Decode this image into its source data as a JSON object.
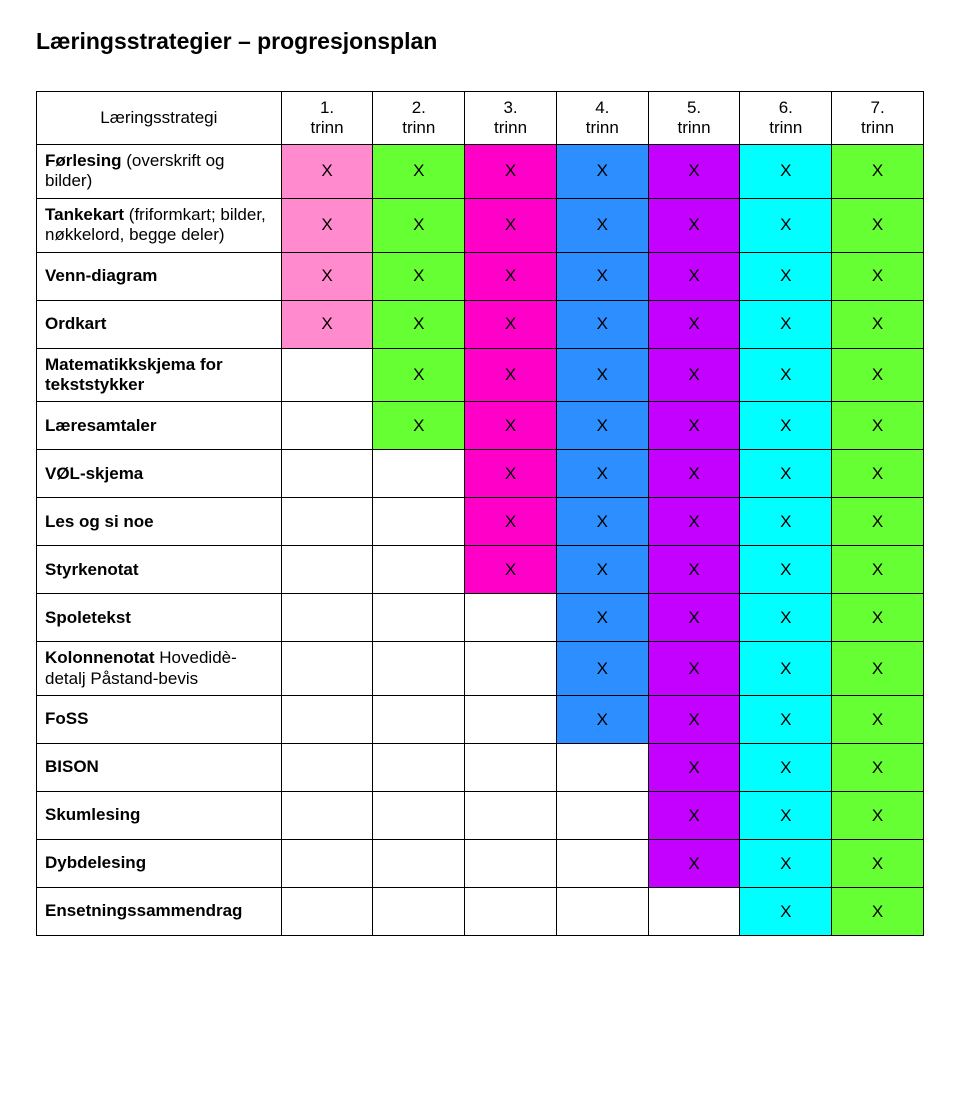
{
  "title": "Læringsstrategier – progresjonsplan",
  "header": {
    "strategy_label": "Læringsstrategi",
    "columns": [
      "1.\ntrinn",
      "2.\ntrinn",
      "3.\ntrinn",
      "4.\ntrinn",
      "5.\ntrinn",
      "6.\ntrinn",
      "7.\ntrinn"
    ]
  },
  "colors": {
    "pink": "#ff8bce",
    "green": "#66ff33",
    "magenta": "#ff00c8",
    "blue": "#2d8fff",
    "purple": "#c400ff",
    "cyan": "#00ffff",
    "white": "#ffffff"
  },
  "rows": [
    {
      "label": "Førlesing",
      "sublabel": "(overskrift og bilder)",
      "bold": true,
      "cells": [
        {
          "v": "X",
          "c": "pink"
        },
        {
          "v": "X",
          "c": "green"
        },
        {
          "v": "X",
          "c": "magenta"
        },
        {
          "v": "X",
          "c": "blue"
        },
        {
          "v": "X",
          "c": "purple"
        },
        {
          "v": "X",
          "c": "cyan"
        },
        {
          "v": "X",
          "c": "green"
        }
      ]
    },
    {
      "label": "Tankekart",
      "sublabel": "(friformkart; bilder, nøkkelord, begge deler)",
      "bold": true,
      "cells": [
        {
          "v": "X",
          "c": "pink"
        },
        {
          "v": "X",
          "c": "green"
        },
        {
          "v": "X",
          "c": "magenta"
        },
        {
          "v": "X",
          "c": "blue"
        },
        {
          "v": "X",
          "c": "purple"
        },
        {
          "v": "X",
          "c": "cyan"
        },
        {
          "v": "X",
          "c": "green"
        }
      ]
    },
    {
      "label": "Venn-diagram",
      "bold": true,
      "cells": [
        {
          "v": "X",
          "c": "pink"
        },
        {
          "v": "X",
          "c": "green"
        },
        {
          "v": "X",
          "c": "magenta"
        },
        {
          "v": "X",
          "c": "blue"
        },
        {
          "v": "X",
          "c": "purple"
        },
        {
          "v": "X",
          "c": "cyan"
        },
        {
          "v": "X",
          "c": "green"
        }
      ]
    },
    {
      "label": "Ordkart",
      "bold": true,
      "cells": [
        {
          "v": "X",
          "c": "pink"
        },
        {
          "v": "X",
          "c": "green"
        },
        {
          "v": "X",
          "c": "magenta"
        },
        {
          "v": "X",
          "c": "blue"
        },
        {
          "v": "X",
          "c": "purple"
        },
        {
          "v": "X",
          "c": "cyan"
        },
        {
          "v": "X",
          "c": "green"
        }
      ]
    },
    {
      "label": "Matematikkskjema for tekststykker",
      "bold": true,
      "cells": [
        {
          "v": "",
          "c": "white"
        },
        {
          "v": "X",
          "c": "green"
        },
        {
          "v": "X",
          "c": "magenta"
        },
        {
          "v": "X",
          "c": "blue"
        },
        {
          "v": "X",
          "c": "purple"
        },
        {
          "v": "X",
          "c": "cyan"
        },
        {
          "v": "X",
          "c": "green"
        }
      ]
    },
    {
      "label": "Læresamtaler",
      "bold": true,
      "cells": [
        {
          "v": "",
          "c": "white"
        },
        {
          "v": "X",
          "c": "green"
        },
        {
          "v": "X",
          "c": "magenta"
        },
        {
          "v": "X",
          "c": "blue"
        },
        {
          "v": "X",
          "c": "purple"
        },
        {
          "v": "X",
          "c": "cyan"
        },
        {
          "v": "X",
          "c": "green"
        }
      ]
    },
    {
      "label": "VØL-skjema",
      "bold": true,
      "cells": [
        {
          "v": "",
          "c": "white"
        },
        {
          "v": "",
          "c": "white"
        },
        {
          "v": "X",
          "c": "magenta"
        },
        {
          "v": "X",
          "c": "blue"
        },
        {
          "v": "X",
          "c": "purple"
        },
        {
          "v": "X",
          "c": "cyan"
        },
        {
          "v": "X",
          "c": "green"
        }
      ]
    },
    {
      "label": "Les og si noe",
      "bold": true,
      "cells": [
        {
          "v": "",
          "c": "white"
        },
        {
          "v": "",
          "c": "white"
        },
        {
          "v": "X",
          "c": "magenta"
        },
        {
          "v": "X",
          "c": "blue"
        },
        {
          "v": "X",
          "c": "purple"
        },
        {
          "v": "X",
          "c": "cyan"
        },
        {
          "v": "X",
          "c": "green"
        }
      ]
    },
    {
      "label": "Styrkenotat",
      "bold": true,
      "cells": [
        {
          "v": "",
          "c": "white"
        },
        {
          "v": "",
          "c": "white"
        },
        {
          "v": "X",
          "c": "magenta"
        },
        {
          "v": "X",
          "c": "blue"
        },
        {
          "v": "X",
          "c": "purple"
        },
        {
          "v": "X",
          "c": "cyan"
        },
        {
          "v": "X",
          "c": "green"
        }
      ]
    },
    {
      "label": "Spoletekst",
      "bold": true,
      "cells": [
        {
          "v": "",
          "c": "white"
        },
        {
          "v": "",
          "c": "white"
        },
        {
          "v": "",
          "c": "white"
        },
        {
          "v": "X",
          "c": "blue"
        },
        {
          "v": "X",
          "c": "purple"
        },
        {
          "v": "X",
          "c": "cyan"
        },
        {
          "v": "X",
          "c": "green"
        }
      ]
    },
    {
      "label": "Kolonnenotat",
      "sublabel": "Hovedidè-detalj Påstand-bevis",
      "bold": true,
      "cells": [
        {
          "v": "",
          "c": "white"
        },
        {
          "v": "",
          "c": "white"
        },
        {
          "v": "",
          "c": "white"
        },
        {
          "v": "X",
          "c": "blue"
        },
        {
          "v": "X",
          "c": "purple"
        },
        {
          "v": "X",
          "c": "cyan"
        },
        {
          "v": "X",
          "c": "green"
        }
      ]
    },
    {
      "label": "FoSS",
      "bold": true,
      "cells": [
        {
          "v": "",
          "c": "white"
        },
        {
          "v": "",
          "c": "white"
        },
        {
          "v": "",
          "c": "white"
        },
        {
          "v": "X",
          "c": "blue"
        },
        {
          "v": "X",
          "c": "purple"
        },
        {
          "v": "X",
          "c": "cyan"
        },
        {
          "v": "X",
          "c": "green"
        }
      ]
    },
    {
      "label": "BISON",
      "bold": true,
      "cells": [
        {
          "v": "",
          "c": "white"
        },
        {
          "v": "",
          "c": "white"
        },
        {
          "v": "",
          "c": "white"
        },
        {
          "v": "",
          "c": "white"
        },
        {
          "v": "X",
          "c": "purple"
        },
        {
          "v": "X",
          "c": "cyan"
        },
        {
          "v": "X",
          "c": "green"
        }
      ]
    },
    {
      "label": "Skumlesing",
      "bold": true,
      "cells": [
        {
          "v": "",
          "c": "white"
        },
        {
          "v": "",
          "c": "white"
        },
        {
          "v": "",
          "c": "white"
        },
        {
          "v": "",
          "c": "white"
        },
        {
          "v": "X",
          "c": "purple"
        },
        {
          "v": "X",
          "c": "cyan"
        },
        {
          "v": "X",
          "c": "green"
        }
      ]
    },
    {
      "label": "Dybdelesing",
      "bold": true,
      "cells": [
        {
          "v": "",
          "c": "white"
        },
        {
          "v": "",
          "c": "white"
        },
        {
          "v": "",
          "c": "white"
        },
        {
          "v": "",
          "c": "white"
        },
        {
          "v": "X",
          "c": "purple"
        },
        {
          "v": "X",
          "c": "cyan"
        },
        {
          "v": "X",
          "c": "green"
        }
      ]
    },
    {
      "label": "Ensetningssammendrag",
      "bold": true,
      "cells": [
        {
          "v": "",
          "c": "white"
        },
        {
          "v": "",
          "c": "white"
        },
        {
          "v": "",
          "c": "white"
        },
        {
          "v": "",
          "c": "white"
        },
        {
          "v": "",
          "c": "white"
        },
        {
          "v": "X",
          "c": "cyan"
        },
        {
          "v": "X",
          "c": "green"
        }
      ]
    }
  ]
}
